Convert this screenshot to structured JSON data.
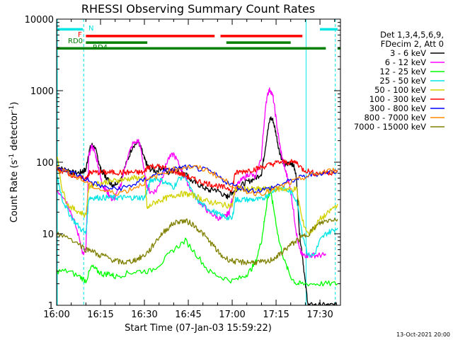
{
  "chart_data": {
    "type": "line",
    "title": "RHESSI Observing Summary Count Rates",
    "xlabel": "Start Time (07-Jan-03 15:59:22)",
    "ylabel_main": "Count Rate (s",
    "ylabel_sup1": "-1",
    "ylabel_mid": " detector",
    "ylabel_sup2": "-1",
    "ylabel_end": ")",
    "yscale": "log",
    "ylim": [
      1,
      10000
    ],
    "xlim": [
      0,
      97
    ],
    "x_unit": "minutes after 16:00",
    "x_ticks": [
      {
        "value": 0,
        "label": "16:00"
      },
      {
        "value": 15,
        "label": "16:15"
      },
      {
        "value": 30,
        "label": "16:30"
      },
      {
        "value": 45,
        "label": "16:45"
      },
      {
        "value": 60,
        "label": "17:00"
      },
      {
        "value": 75,
        "label": "17:15"
      },
      {
        "value": 90,
        "label": "17:30"
      }
    ],
    "y_ticks": [
      {
        "value": 1,
        "label": "1"
      },
      {
        "value": 10,
        "label": "10"
      },
      {
        "value": 100,
        "label": "100"
      },
      {
        "value": 1000,
        "label": "1000"
      },
      {
        "value": 10000,
        "label": "10000"
      }
    ],
    "legend_header": [
      "Det 1,3,4,5,6,9,",
      "FDecim 2, Att 0"
    ],
    "legend_position": "top-right",
    "series": [
      {
        "name": "3 - 6 keV",
        "color": "#000000",
        "x": [
          0,
          2,
          4,
          6,
          8,
          9,
          10,
          11,
          12,
          13,
          14,
          15,
          16,
          17,
          18,
          19,
          20,
          22,
          24,
          26,
          28,
          29,
          30,
          31,
          32,
          34,
          36,
          38,
          40,
          42,
          44,
          46,
          48,
          50,
          52,
          54,
          56,
          58,
          59,
          60,
          61,
          62,
          64,
          66,
          68,
          70,
          71,
          72,
          73,
          74,
          75,
          76,
          77,
          78,
          79,
          80,
          81,
          82,
          83,
          84,
          85,
          86,
          88,
          90,
          92,
          94,
          96
        ],
        "y": [
          85,
          80,
          78,
          70,
          72,
          75,
          78,
          140,
          175,
          160,
          120,
          80,
          70,
          60,
          55,
          48,
          50,
          60,
          100,
          170,
          190,
          150,
          110,
          90,
          80,
          75,
          85,
          70,
          78,
          82,
          70,
          55,
          50,
          45,
          40,
          42,
          38,
          32,
          35,
          38,
          40,
          45,
          50,
          55,
          60,
          70,
          130,
          250,
          420,
          380,
          250,
          150,
          110,
          90,
          95,
          100,
          90,
          60,
          10,
          5,
          2,
          1,
          1,
          1,
          1,
          1,
          1
        ]
      },
      {
        "name": "6 - 12 keV",
        "color": "#ff00ff",
        "x": [
          0,
          2,
          4,
          6,
          8,
          9,
          10,
          11,
          12,
          13,
          14,
          15,
          16,
          17,
          18,
          19,
          20,
          22,
          24,
          26,
          28,
          29,
          30,
          31,
          32,
          34,
          36,
          38,
          40,
          42,
          44,
          46,
          48,
          50,
          52,
          54,
          56,
          58,
          59,
          60,
          61,
          62,
          64,
          66,
          68,
          70,
          71,
          72,
          73,
          74,
          75,
          76,
          77,
          78,
          79,
          80,
          81,
          82,
          83,
          84,
          85,
          86,
          88,
          90,
          92
        ],
        "y": [
          40,
          35,
          25,
          15,
          8,
          5,
          6,
          120,
          170,
          140,
          100,
          60,
          45,
          40,
          35,
          30,
          32,
          50,
          110,
          180,
          200,
          140,
          70,
          45,
          38,
          40,
          60,
          110,
          130,
          90,
          60,
          40,
          30,
          25,
          20,
          18,
          16,
          18,
          20,
          30,
          40,
          50,
          60,
          70,
          60,
          120,
          400,
          900,
          1050,
          800,
          400,
          200,
          120,
          80,
          60,
          40,
          20,
          10,
          6,
          5,
          5,
          5,
          5,
          5,
          5
        ]
      },
      {
        "name": "12 - 25 keV",
        "color": "#00ff00",
        "x": [
          0,
          4,
          8,
          10,
          12,
          14,
          16,
          18,
          20,
          24,
          28,
          32,
          36,
          40,
          44,
          48,
          52,
          56,
          60,
          64,
          66,
          68,
          70,
          71,
          72,
          73,
          74,
          76,
          78,
          80,
          82,
          84,
          88,
          92,
          96
        ],
        "y": [
          3,
          3,
          2.5,
          2.2,
          3.5,
          3,
          2.7,
          2.8,
          2.5,
          2.8,
          3,
          3,
          4,
          6,
          8,
          5,
          3,
          2.5,
          2.2,
          2.5,
          3,
          4,
          8,
          15,
          30,
          40,
          25,
          8,
          4,
          2.5,
          2,
          2,
          2,
          2,
          2
        ]
      },
      {
        "name": "25 - 50 keV",
        "color": "#00e5e5",
        "x": [
          0,
          2,
          4,
          6,
          8,
          10,
          11,
          12,
          14,
          16,
          18,
          20,
          22,
          24,
          26,
          28,
          30,
          31,
          32,
          34,
          36,
          38,
          40,
          42,
          44,
          46,
          48,
          50,
          52,
          54,
          56,
          58,
          60,
          61,
          62,
          64,
          66,
          68,
          70,
          72,
          74,
          76,
          78,
          80,
          82,
          84,
          86,
          88,
          90,
          92,
          94,
          96
        ],
        "y": [
          70,
          30,
          20,
          15,
          12,
          10,
          32,
          32,
          32,
          32,
          32,
          32,
          32,
          32,
          32,
          32,
          32,
          40,
          55,
          60,
          55,
          50,
          45,
          60,
          65,
          40,
          30,
          25,
          22,
          20,
          18,
          17,
          16,
          30,
          30,
          30,
          30,
          30,
          30,
          35,
          40,
          45,
          42,
          38,
          30,
          10,
          5,
          5,
          8,
          10,
          11,
          12
        ]
      },
      {
        "name": "50 - 100 keV",
        "color": "#d2d200",
        "x": [
          0,
          2,
          4,
          6,
          8,
          10,
          11,
          12,
          14,
          16,
          18,
          20,
          22,
          24,
          26,
          28,
          30,
          31,
          32,
          34,
          36,
          38,
          40,
          42,
          44,
          46,
          48,
          50,
          52,
          54,
          56,
          58,
          60,
          61,
          62,
          64,
          66,
          68,
          70,
          72,
          74,
          76,
          78,
          80,
          82,
          84,
          86,
          88,
          90,
          92,
          94,
          96
        ],
        "y": [
          130,
          40,
          25,
          22,
          20,
          18,
          45,
          48,
          50,
          52,
          54,
          55,
          57,
          58,
          60,
          60,
          60,
          22,
          25,
          28,
          30,
          32,
          34,
          36,
          36,
          35,
          33,
          30,
          28,
          27,
          26,
          25,
          25,
          42,
          42,
          42,
          42,
          42,
          42,
          42,
          42,
          42,
          42,
          42,
          42,
          15,
          10,
          12,
          16,
          18,
          22,
          26
        ]
      },
      {
        "name": "100 - 300 keV",
        "color": "#ff0000",
        "x": [
          0,
          2,
          4,
          6,
          8,
          10,
          11,
          12,
          14,
          16,
          18,
          20,
          22,
          24,
          26,
          28,
          30,
          31,
          32,
          34,
          36,
          38,
          40,
          42,
          44,
          46,
          48,
          50,
          52,
          54,
          56,
          58,
          60,
          61,
          62,
          64,
          66,
          68,
          70,
          72,
          74,
          76,
          78,
          80,
          82,
          84,
          86,
          88,
          90,
          92,
          94,
          96
        ],
        "y": [
          80,
          75,
          70,
          65,
          60,
          58,
          70,
          72,
          72,
          72,
          72,
          72,
          72,
          72,
          72,
          72,
          72,
          85,
          88,
          88,
          85,
          80,
          75,
          70,
          65,
          60,
          55,
          52,
          50,
          48,
          45,
          44,
          42,
          70,
          72,
          75,
          78,
          80,
          85,
          90,
          95,
          100,
          100,
          100,
          100,
          80,
          75,
          70,
          70,
          72,
          72,
          74
        ]
      },
      {
        "name": "300 - 800 keV",
        "color": "#0000ff",
        "x": [
          0,
          4,
          8,
          12,
          16,
          20,
          24,
          28,
          32,
          36,
          40,
          44,
          48,
          52,
          56,
          60,
          64,
          68,
          72,
          76,
          80,
          84,
          88,
          92,
          96
        ],
        "y": [
          80,
          75,
          65,
          52,
          45,
          42,
          45,
          52,
          62,
          72,
          80,
          85,
          82,
          75,
          60,
          48,
          42,
          40,
          42,
          48,
          55,
          62,
          68,
          72,
          75
        ]
      },
      {
        "name": "800 - 7000 keV",
        "color": "#ff8c00",
        "x": [
          0,
          4,
          8,
          12,
          16,
          20,
          24,
          28,
          32,
          36,
          40,
          44,
          48,
          52,
          56,
          60,
          64,
          68,
          72,
          76,
          80,
          84,
          88,
          92,
          96
        ],
        "y": [
          82,
          72,
          58,
          47,
          40,
          37,
          40,
          47,
          58,
          70,
          80,
          86,
          84,
          76,
          60,
          48,
          40,
          37,
          38,
          44,
          52,
          60,
          68,
          74,
          78
        ]
      },
      {
        "name": "7000 - 15000 keV",
        "color": "#808000",
        "x": [
          0,
          4,
          8,
          10,
          12,
          14,
          16,
          18,
          20,
          22,
          24,
          26,
          28,
          30,
          32,
          34,
          36,
          38,
          40,
          42,
          44,
          46,
          48,
          50,
          52,
          54,
          56,
          58,
          60,
          62,
          64,
          66,
          68,
          70,
          72,
          74,
          76,
          78,
          80,
          82,
          84,
          86,
          88,
          90,
          92,
          94,
          96
        ],
        "y": [
          10,
          9,
          7,
          6,
          6,
          5,
          5,
          4.5,
          4.2,
          4,
          4,
          4.2,
          4.5,
          5,
          6,
          8,
          10,
          12,
          14,
          15,
          15,
          14,
          12,
          10,
          8,
          6.5,
          5,
          4.5,
          4.2,
          4,
          4,
          4,
          4,
          4,
          4,
          4.5,
          5,
          6,
          7,
          8,
          9,
          10,
          12,
          14,
          15,
          16,
          16
        ]
      }
    ],
    "mode_bars": [
      {
        "label": "N",
        "color": "#00e5e5",
        "segments": [
          [
            0,
            9
          ],
          [
            90,
            96
          ]
        ],
        "y_level": 7200
      },
      {
        "label": "F",
        "color": "#ff0000",
        "segments": [
          [
            10,
            54
          ],
          [
            56,
            84
          ]
        ],
        "y_level": 5800
      },
      {
        "label": "RD0",
        "color": "#008000",
        "segments": [
          [
            10,
            31
          ],
          [
            58,
            80
          ]
        ],
        "y_level": 4700
      },
      {
        "label": "RD4",
        "color": "#008000",
        "segments": [
          [
            0,
            92
          ],
          [
            96,
            97
          ]
        ],
        "y_level": 3900
      }
    ],
    "vertical_markers": [
      {
        "x": 0,
        "style": "solid"
      },
      {
        "x": 9,
        "style": "dashed"
      },
      {
        "x": 85,
        "style": "solid"
      },
      {
        "x": 95,
        "style": "dashed"
      }
    ],
    "footer_date": "13-Oct-2021 20:00"
  }
}
